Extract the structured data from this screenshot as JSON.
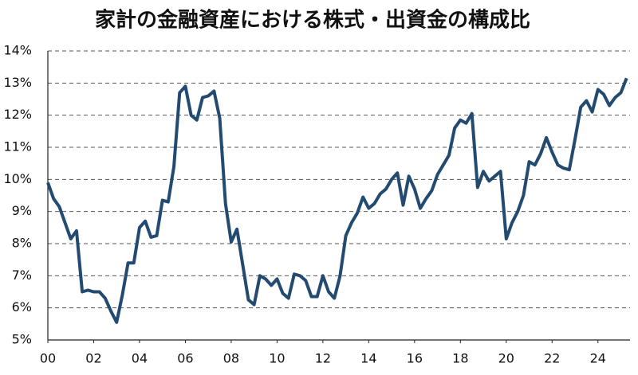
{
  "chart_data": {
    "type": "line",
    "title": "家計の金融資産における株式・出資金の構成比",
    "x": [
      2000,
      2000.25,
      2000.5,
      2000.75,
      2001,
      2001.25,
      2001.5,
      2001.75,
      2002,
      2002.25,
      2002.5,
      2002.75,
      2003,
      2003.25,
      2003.5,
      2003.75,
      2004,
      2004.25,
      2004.5,
      2004.75,
      2005,
      2005.25,
      2005.5,
      2005.75,
      2006,
      2006.25,
      2006.5,
      2006.75,
      2007,
      2007.25,
      2007.5,
      2007.75,
      2008,
      2008.25,
      2008.5,
      2008.75,
      2009,
      2009.25,
      2009.5,
      2009.75,
      2010,
      2010.25,
      2010.5,
      2010.75,
      2011,
      2011.25,
      2011.5,
      2011.75,
      2012,
      2012.25,
      2012.5,
      2012.75,
      2013,
      2013.25,
      2013.5,
      2013.75,
      2014,
      2014.25,
      2014.5,
      2014.75,
      2015,
      2015.25,
      2015.5,
      2015.75,
      2016,
      2016.25,
      2016.5,
      2016.75,
      2017,
      2017.25,
      2017.5,
      2017.75,
      2018,
      2018.25,
      2018.5,
      2018.75,
      2019,
      2019.25,
      2019.5,
      2019.75,
      2020,
      2020.25,
      2020.5,
      2020.75,
      2021,
      2021.25,
      2021.5,
      2021.75,
      2022,
      2022.25,
      2022.5,
      2022.75,
      2023,
      2023.25,
      2023.5,
      2023.75,
      2024,
      2024.25,
      2024.5,
      2024.75,
      2025,
      2025.25
    ],
    "series": [
      {
        "color": "#234a70",
        "values": [
          9.9,
          9.4,
          9.15,
          8.65,
          8.15,
          8.4,
          6.5,
          6.55,
          6.5,
          6.5,
          6.3,
          5.9,
          5.55,
          6.4,
          7.4,
          7.4,
          8.5,
          8.7,
          8.2,
          8.25,
          9.35,
          9.3,
          10.4,
          12.7,
          12.9,
          12.0,
          11.85,
          12.55,
          12.6,
          12.75,
          11.9,
          9.25,
          8.05,
          8.45,
          7.35,
          6.25,
          6.1,
          7.0,
          6.9,
          6.7,
          6.9,
          6.45,
          6.3,
          7.05,
          7.0,
          6.85,
          6.35,
          6.35,
          7.0,
          6.5,
          6.3,
          7.0,
          8.25,
          8.65,
          8.95,
          9.45,
          9.1,
          9.25,
          9.55,
          9.7,
          10.0,
          10.2,
          9.2,
          10.1,
          9.7,
          9.1,
          9.4,
          9.65,
          10.15,
          10.45,
          10.75,
          11.6,
          11.85,
          11.75,
          12.05,
          9.75,
          10.25,
          9.95,
          10.1,
          10.25,
          8.15,
          8.65,
          9.0,
          9.5,
          10.55,
          10.45,
          10.8,
          11.3,
          10.85,
          10.45,
          10.35,
          10.3,
          11.25,
          12.25,
          12.45,
          12.1,
          12.8,
          12.65,
          12.3,
          12.55,
          12.7,
          13.15
        ]
      }
    ],
    "xlim": [
      2000,
      2025.4
    ],
    "xticks": [
      {
        "value": 2000,
        "label": "00"
      },
      {
        "value": 2002,
        "label": "02"
      },
      {
        "value": 2004,
        "label": "04"
      },
      {
        "value": 2006,
        "label": "06"
      },
      {
        "value": 2008,
        "label": "08"
      },
      {
        "value": 2010,
        "label": "10"
      },
      {
        "value": 2012,
        "label": "12"
      },
      {
        "value": 2014,
        "label": "14"
      },
      {
        "value": 2016,
        "label": "16"
      },
      {
        "value": 2018,
        "label": "18"
      },
      {
        "value": 2020,
        "label": "20"
      },
      {
        "value": 2022,
        "label": "22"
      },
      {
        "value": 2024,
        "label": "24"
      }
    ],
    "ylim": [
      5,
      14
    ],
    "yticks": [
      {
        "value": 5,
        "label": "5%"
      },
      {
        "value": 6,
        "label": "6%"
      },
      {
        "value": 7,
        "label": "7%"
      },
      {
        "value": 8,
        "label": "8%"
      },
      {
        "value": 9,
        "label": "9%"
      },
      {
        "value": 10,
        "label": "10%"
      },
      {
        "value": 11,
        "label": "11%"
      },
      {
        "value": 12,
        "label": "12%"
      },
      {
        "value": 13,
        "label": "13%"
      },
      {
        "value": 14,
        "label": "14%"
      }
    ],
    "grid": true
  }
}
